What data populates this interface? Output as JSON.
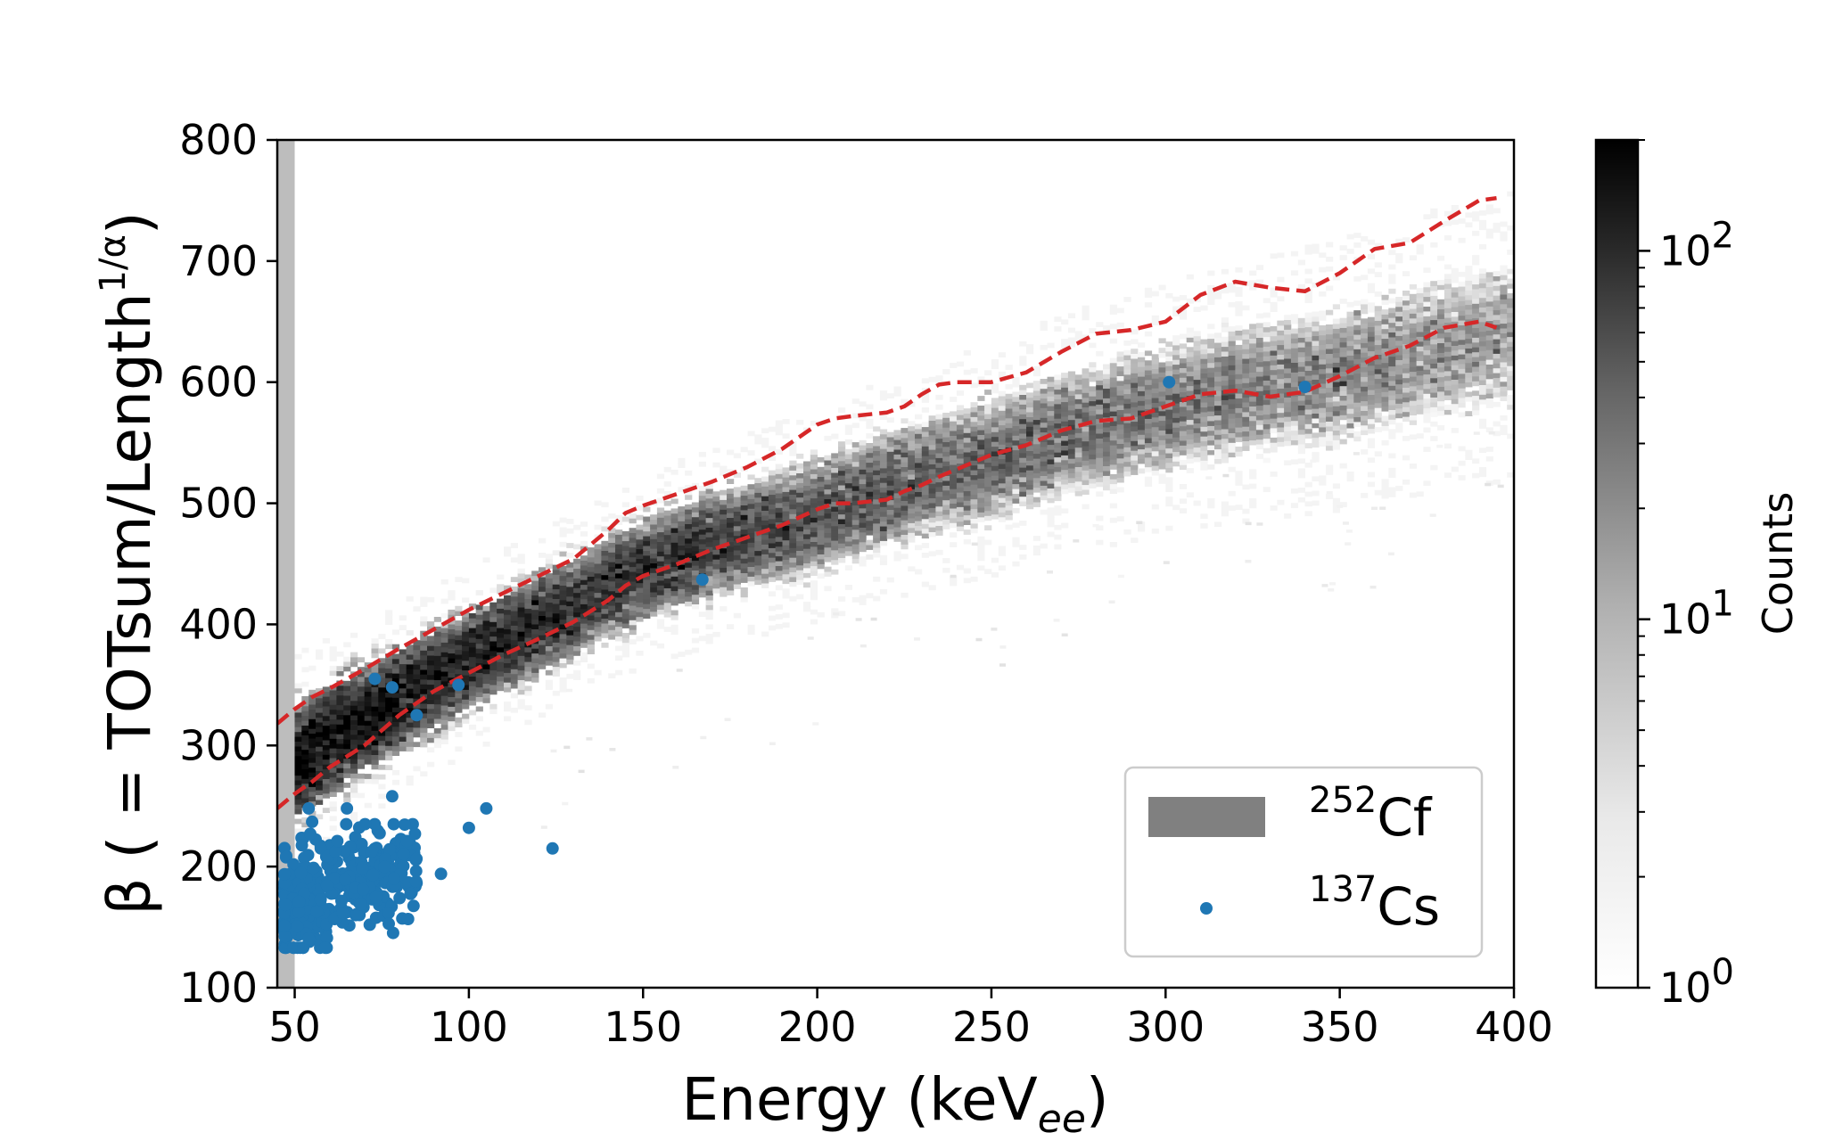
{
  "chart_data": {
    "type": "heatmap",
    "xlabel_main": "Energy (keV",
    "xlabel_sub": "ee",
    "xlabel_close": ")",
    "ylabel_main": "β ( = TOTsum/Length",
    "ylabel_sup": "1/α",
    "ylabel_close": ")",
    "xlim": [
      45,
      400
    ],
    "ylim": [
      100,
      800
    ],
    "x_ticks": [
      50,
      100,
      150,
      200,
      250,
      300,
      350,
      400
    ],
    "y_ticks": [
      100,
      200,
      300,
      400,
      500,
      600,
      700,
      800
    ],
    "x_tick_labels": [
      "50",
      "100",
      "150",
      "200",
      "250",
      "300",
      "350",
      "400"
    ],
    "y_tick_labels": [
      "100",
      "200",
      "300",
      "400",
      "500",
      "600",
      "700",
      "800"
    ],
    "threshold_band": {
      "x": [
        45,
        50
      ],
      "color": "#bdbdbd"
    },
    "heatmap_ridge": {
      "x": [
        50,
        60,
        75,
        90,
        110,
        130,
        150,
        170,
        190,
        210,
        230,
        250,
        270,
        290,
        310,
        330,
        350,
        370,
        385,
        400
      ],
      "center_beta": [
        285,
        305,
        330,
        355,
        385,
        415,
        445,
        465,
        480,
        500,
        520,
        535,
        555,
        570,
        585,
        595,
        605,
        620,
        630,
        640
      ],
      "width_beta": [
        28,
        26,
        25,
        24,
        24,
        24,
        25,
        26,
        27,
        28,
        29,
        30,
        31,
        32,
        33,
        34,
        35,
        36,
        37,
        38
      ],
      "peak_log_counts": [
        2.25,
        2.2,
        2.15,
        2.05,
        1.95,
        1.85,
        1.75,
        1.65,
        1.55,
        1.45,
        1.35,
        1.3,
        1.2,
        1.15,
        1.1,
        1.0,
        0.95,
        0.9,
        0.85,
        0.8
      ]
    },
    "colorbar": {
      "label": "Counts",
      "scale": "log",
      "range": [
        1,
        200
      ],
      "ticks": [
        {
          "value": 1,
          "base": "10",
          "exp": "0"
        },
        {
          "value": 10,
          "base": "10",
          "exp": "1"
        },
        {
          "value": 100,
          "base": "10",
          "exp": "2"
        }
      ],
      "cmap": "Greys"
    },
    "series": [
      {
        "name": "upper-bound",
        "style": "dashed",
        "color": "#d62728",
        "x": [
          45,
          50,
          55,
          60,
          70,
          80,
          90,
          100,
          110,
          120,
          130,
          140,
          145,
          150,
          160,
          170,
          180,
          190,
          200,
          205,
          210,
          220,
          225,
          230,
          235,
          240,
          250,
          260,
          270,
          280,
          290,
          300,
          310,
          320,
          330,
          340,
          350,
          360,
          370,
          380,
          390,
          395
        ],
        "y": [
          318,
          330,
          340,
          347,
          363,
          380,
          396,
          412,
          426,
          440,
          454,
          478,
          492,
          498,
          508,
          518,
          530,
          545,
          565,
          570,
          572,
          575,
          580,
          590,
          598,
          600,
          600,
          608,
          625,
          640,
          643,
          650,
          672,
          683,
          678,
          675,
          690,
          710,
          715,
          733,
          750,
          752
        ]
      },
      {
        "name": "lower-bound",
        "style": "dashed",
        "color": "#d62728",
        "x": [
          45,
          50,
          55,
          60,
          70,
          80,
          90,
          100,
          110,
          120,
          130,
          140,
          145,
          150,
          160,
          170,
          180,
          190,
          200,
          205,
          210,
          220,
          225,
          230,
          235,
          240,
          250,
          260,
          270,
          280,
          290,
          300,
          310,
          320,
          330,
          340,
          350,
          360,
          370,
          380,
          390,
          395
        ],
        "y": [
          248,
          260,
          270,
          282,
          300,
          325,
          345,
          360,
          375,
          388,
          402,
          420,
          432,
          440,
          450,
          462,
          472,
          482,
          495,
          500,
          500,
          503,
          510,
          515,
          522,
          528,
          540,
          548,
          560,
          568,
          570,
          580,
          590,
          593,
          588,
          592,
          605,
          620,
          630,
          645,
          650,
          645
        ]
      },
      {
        "name": "137Cs",
        "type": "scatter",
        "color": "#1f77b4",
        "outliers_x": [
          73,
          78,
          85,
          97,
          100,
          105,
          78,
          65,
          92,
          124,
          167,
          301,
          340,
          54,
          55
        ],
        "outliers_y": [
          355,
          348,
          325,
          350,
          232,
          248,
          258,
          248,
          194,
          215,
          437,
          600,
          596,
          248,
          237
        ],
        "cluster": {
          "x_range": [
            47,
            85
          ],
          "y_range": [
            133,
            235
          ],
          "count": 420
        }
      }
    ],
    "legend": {
      "position": "lower-right",
      "entries": [
        {
          "name": "252Cf",
          "sup": "252",
          "text": "Cf",
          "marker": "patch",
          "color": "#808080"
        },
        {
          "name": "137Cs",
          "sup": "137",
          "text": "Cs",
          "marker": "dot",
          "color": "#1f77b4"
        }
      ]
    }
  }
}
